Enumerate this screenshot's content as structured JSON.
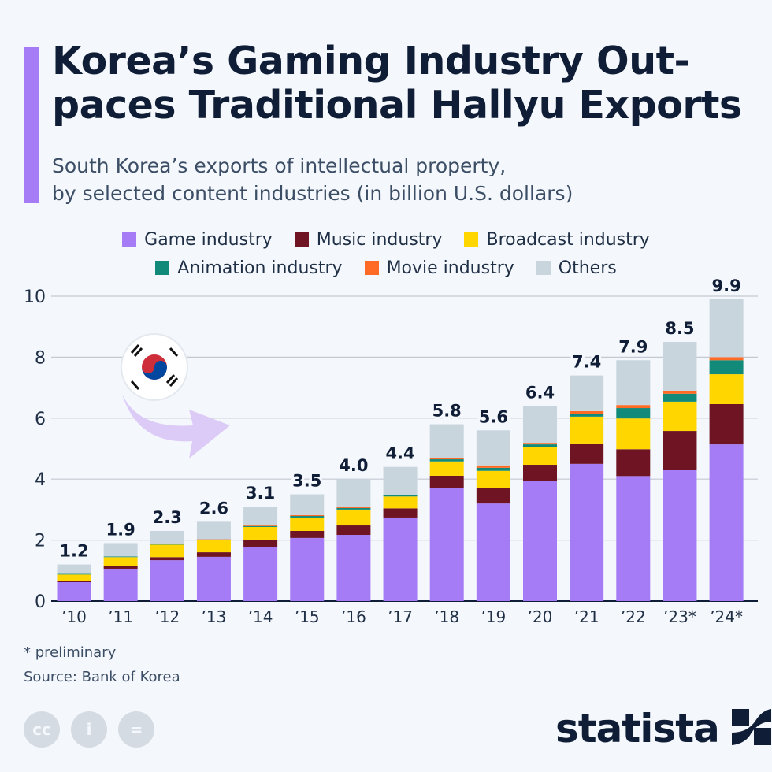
{
  "title_line1": "Korea’s Gaming Industry Out-",
  "title_line2": "paces Traditional Hallyu Exports",
  "subtitle_line1": "South Korea’s exports of intellectual property,",
  "subtitle_line2": "by selected content industries (in billion U.S. dollars)",
  "footnote": "* preliminary",
  "source": "Source: Bank of Korea",
  "brand": "statista",
  "license_icons": [
    "cc-icon",
    "attribution-icon",
    "no-derivatives-icon"
  ],
  "colors": {
    "accent": "#a57cf6",
    "text": "#0f1e36"
  },
  "chart_data": {
    "type": "bar",
    "stacked": true,
    "categories": [
      "’10",
      "’11",
      "’12",
      "’13",
      "’14",
      "’15",
      "’16",
      "’17",
      "’18",
      "’19",
      "’20",
      "’21",
      "’22",
      "’23*",
      "’24*"
    ],
    "totals": [
      "1.2",
      "1.9",
      "2.3",
      "2.6",
      "3.1",
      "3.5",
      "4.0",
      "4.4",
      "5.8",
      "5.6",
      "6.4",
      "7.4",
      "7.9",
      "8.5",
      "9.9"
    ],
    "series": [
      {
        "name": "Game industry",
        "color": "#a57cf6",
        "values": [
          0.62,
          1.06,
          1.34,
          1.45,
          1.76,
          2.07,
          2.17,
          2.74,
          3.7,
          3.2,
          3.95,
          4.5,
          4.1,
          4.29,
          5.14
        ]
      },
      {
        "name": "Music industry",
        "color": "#6e1423",
        "values": [
          0.05,
          0.1,
          0.1,
          0.15,
          0.23,
          0.23,
          0.31,
          0.3,
          0.41,
          0.5,
          0.52,
          0.67,
          0.88,
          1.29,
          1.32
        ]
      },
      {
        "name": "Broadcast industry",
        "color": "#ffd600",
        "values": [
          0.2,
          0.28,
          0.41,
          0.39,
          0.44,
          0.44,
          0.52,
          0.39,
          0.47,
          0.57,
          0.59,
          0.88,
          1.01,
          0.96,
          0.98
        ]
      },
      {
        "name": "Animation industry",
        "color": "#128a7a",
        "values": [
          0.02,
          0.02,
          0.03,
          0.03,
          0.03,
          0.05,
          0.05,
          0.04,
          0.07,
          0.1,
          0.08,
          0.1,
          0.34,
          0.26,
          0.46
        ]
      },
      {
        "name": "Movie industry",
        "color": "#ff6b24",
        "values": [
          0,
          0,
          0.01,
          0.01,
          0.02,
          0.03,
          0.03,
          0.02,
          0.05,
          0.08,
          0.05,
          0.08,
          0.1,
          0.1,
          0.1
        ]
      },
      {
        "name": "Others",
        "color": "#c8d5dd",
        "values": [
          0.31,
          0.44,
          0.41,
          0.57,
          0.62,
          0.68,
          0.92,
          0.91,
          1.1,
          1.15,
          1.21,
          1.17,
          1.47,
          1.6,
          1.9
        ]
      }
    ],
    "yticks": [
      "0",
      "2",
      "4",
      "6",
      "8",
      "10"
    ],
    "ylim": [
      0,
      10
    ],
    "grid": true,
    "legend_position": "top"
  }
}
